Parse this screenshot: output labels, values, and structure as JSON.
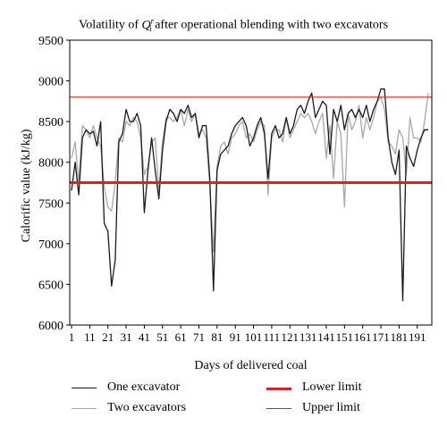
{
  "title_parts": {
    "before": "Volatility of",
    "q": "Q",
    "sup": "r",
    "sub": "i",
    "after": "after operational blending with two excavators"
  },
  "chart_data": {
    "type": "line",
    "ylabel": "Calorific value (kJ/kg)",
    "xlabel": "Days of delivered coal",
    "ylim": [
      6000,
      9500
    ],
    "xlim": [
      1,
      198
    ],
    "yticks": [
      6000,
      6500,
      7000,
      7500,
      8000,
      8500,
      9000,
      9500
    ],
    "xticks": [
      1,
      11,
      21,
      31,
      41,
      51,
      61,
      71,
      81,
      91,
      101,
      111,
      121,
      131,
      141,
      151,
      161,
      171,
      181,
      191
    ],
    "hlines": [
      {
        "name": "Lower limit",
        "value": 7750,
        "color": "#e02020",
        "width": 3
      },
      {
        "name": "Upper limit",
        "value": 8800,
        "color": "#e02020",
        "width": 1.2
      }
    ],
    "series": [
      {
        "name": "One excavator",
        "color": "#1a1a1a",
        "x": [
          1,
          3,
          5,
          7,
          9,
          11,
          13,
          15,
          17,
          19,
          21,
          23,
          25,
          27,
          29,
          31,
          33,
          35,
          37,
          39,
          41,
          43,
          45,
          47,
          49,
          51,
          53,
          55,
          57,
          59,
          61,
          63,
          65,
          67,
          69,
          71,
          73,
          75,
          77,
          79,
          81,
          83,
          85,
          87,
          89,
          91,
          93,
          95,
          97,
          99,
          101,
          103,
          105,
          107,
          109,
          111,
          113,
          115,
          117,
          119,
          121,
          123,
          125,
          127,
          129,
          131,
          133,
          135,
          137,
          139,
          141,
          143,
          145,
          147,
          149,
          151,
          153,
          155,
          157,
          159,
          161,
          163,
          165,
          167,
          169,
          171,
          173,
          175,
          177,
          179,
          181,
          183,
          185,
          187,
          189,
          191,
          193,
          195,
          197
        ],
        "y": [
          7650,
          8000,
          7600,
          8300,
          8400,
          8350,
          8380,
          8200,
          8500,
          7250,
          7150,
          6480,
          6800,
          8250,
          8350,
          8650,
          8500,
          8500,
          8600,
          8450,
          7380,
          7900,
          8300,
          7900,
          7550,
          8150,
          8500,
          8650,
          8600,
          8500,
          8650,
          8600,
          8700,
          8550,
          8600,
          8300,
          8450,
          8450,
          7800,
          6420,
          7900,
          8100,
          8150,
          8200,
          8350,
          8450,
          8500,
          8550,
          8450,
          8200,
          8300,
          8450,
          8550,
          8350,
          7800,
          8350,
          8450,
          8300,
          8350,
          8550,
          8350,
          8450,
          8650,
          8700,
          8600,
          8750,
          8850,
          8550,
          8650,
          8750,
          8700,
          8100,
          8650,
          8500,
          8700,
          8400,
          8600,
          8650,
          8550,
          8650,
          8550,
          8700,
          8500,
          8650,
          8750,
          8900,
          8900,
          8300,
          8000,
          7850,
          8150,
          6300,
          8200,
          8050,
          7950,
          8150,
          8300,
          8400,
          8400
        ]
      },
      {
        "name": "Two excavators",
        "color": "#a8a8a8",
        "x": [
          1,
          3,
          5,
          7,
          9,
          11,
          13,
          15,
          17,
          19,
          21,
          23,
          25,
          27,
          29,
          31,
          33,
          35,
          37,
          39,
          41,
          43,
          45,
          47,
          49,
          51,
          53,
          55,
          57,
          59,
          61,
          63,
          65,
          67,
          69,
          71,
          73,
          75,
          77,
          79,
          81,
          83,
          85,
          87,
          89,
          91,
          93,
          95,
          97,
          99,
          101,
          103,
          105,
          107,
          109,
          111,
          113,
          115,
          117,
          119,
          121,
          123,
          125,
          127,
          129,
          131,
          133,
          135,
          137,
          139,
          141,
          143,
          145,
          147,
          149,
          151,
          153,
          155,
          157,
          159,
          161,
          163,
          165,
          167,
          169,
          171,
          173,
          175,
          177,
          179,
          181,
          183,
          185,
          187,
          189,
          191,
          193,
          195,
          197
        ],
        "y": [
          8050,
          8250,
          7750,
          8450,
          8400,
          8300,
          8450,
          8300,
          8200,
          7700,
          7450,
          7400,
          7750,
          8300,
          8250,
          8500,
          8450,
          8550,
          8500,
          8300,
          7850,
          7950,
          8250,
          8300,
          7650,
          8250,
          8550,
          8550,
          8500,
          8550,
          8650,
          8450,
          8650,
          8500,
          8600,
          8350,
          8400,
          8300,
          7700,
          6900,
          7950,
          8200,
          8250,
          8100,
          8300,
          8350,
          8450,
          8500,
          8300,
          8350,
          8250,
          8400,
          8500,
          8450,
          7600,
          8300,
          8400,
          8400,
          8250,
          8550,
          8300,
          8400,
          8500,
          8600,
          8550,
          8600,
          8500,
          8350,
          8500,
          8600,
          8050,
          8450,
          7800,
          8500,
          8350,
          7450,
          8600,
          8400,
          8500,
          8700,
          8300,
          8550,
          8400,
          8550,
          8750,
          8800,
          8650,
          8250,
          8200,
          8100,
          8400,
          8300,
          7850,
          8550,
          8300,
          8300,
          8250,
          8500,
          8850
        ]
      }
    ]
  },
  "legend": [
    {
      "label": "One excavator",
      "color": "#1a1a1a",
      "width": 1.2
    },
    {
      "label": "Lower limit",
      "color": "#e02020",
      "width": 3
    },
    {
      "label": "Two excavators",
      "color": "#a8a8a8",
      "width": 1.2
    },
    {
      "label": "Upper limit",
      "color": "#e02020",
      "width": 1.2
    }
  ]
}
